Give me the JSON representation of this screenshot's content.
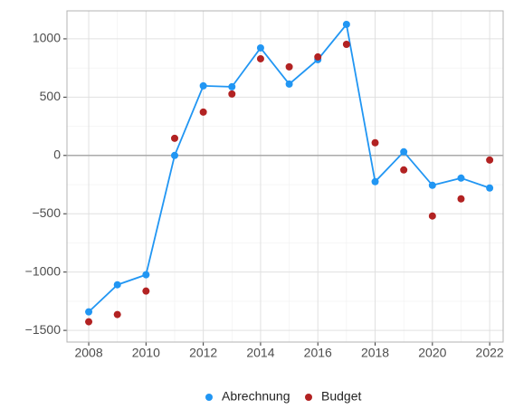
{
  "chart_data": {
    "type": "line",
    "x": [
      2008,
      2009,
      2010,
      2011,
      2012,
      2013,
      2014,
      2015,
      2016,
      2017,
      2018,
      2019,
      2020,
      2021,
      2022
    ],
    "series": [
      {
        "name": "Abrechnung",
        "color": "#2196f3",
        "line": true,
        "values": [
          -1341,
          -1109,
          -1023,
          0,
          597,
          589,
          922,
          612,
          822,
          1124,
          -225,
          31,
          -256,
          -194,
          -279
        ]
      },
      {
        "name": "Budget",
        "color": "#b22222",
        "line": false,
        "values": [
          -1426,
          -1364,
          -1163,
          147,
          372,
          527,
          829,
          760,
          845,
          953,
          109,
          -124,
          -519,
          -372,
          -39
        ]
      }
    ],
    "xlim": [
      2007.24,
      2022.47
    ],
    "xticks": [
      2008,
      2010,
      2012,
      2014,
      2016,
      2018,
      2020,
      2022
    ],
    "ylim": [
      -1600,
      1240
    ],
    "yticks": [
      {
        "value": -1500,
        "label": "−1500"
      },
      {
        "value": -1000,
        "label": "−1000"
      },
      {
        "value": -500,
        "label": "−500"
      },
      0,
      500,
      1000
    ],
    "grid": true,
    "minor_grid": true,
    "reference_line": 0,
    "legend": "bottom"
  }
}
